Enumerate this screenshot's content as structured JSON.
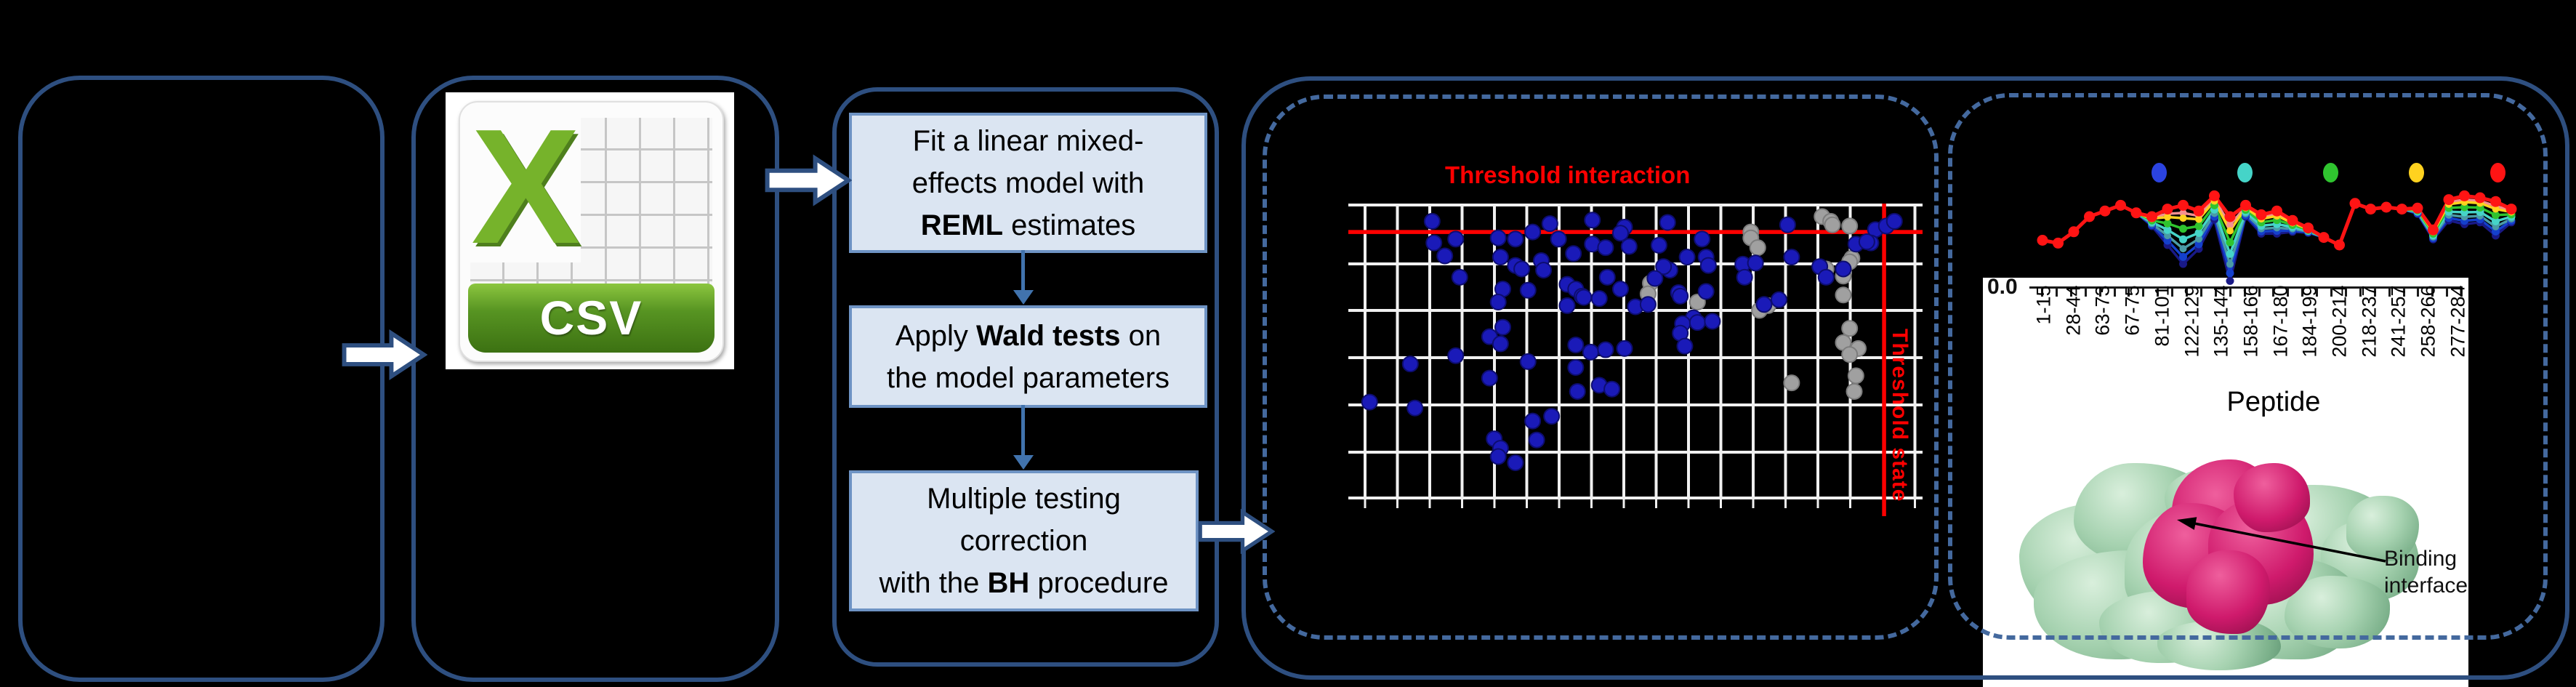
{
  "figure": {
    "background": "#000000"
  },
  "colors": {
    "panel_border": "#2e4f80",
    "dashed_border": "#44699e",
    "box_fill": "#dbe5f2",
    "box_border": "#6e93c4",
    "connector": "#4173ad",
    "threshold_red": "#ff0000",
    "grid_line": "#f0f0f0",
    "csv_green": "#76b32b",
    "protein_green": "#a6d2b0",
    "protein_magenta": "#cf1a6c"
  },
  "csv_icon": {
    "x_letter": "X",
    "label": "CSV"
  },
  "pipeline": {
    "boxes": [
      {
        "lines": [
          [
            {
              "text": "Fit a linear mixed-",
              "bold": false
            }
          ],
          [
            {
              "text": "effects model with",
              "bold": false
            }
          ],
          [
            {
              "text": "REML",
              "bold": true
            },
            {
              "text": " estimates",
              "bold": false
            }
          ]
        ]
      },
      {
        "lines": [
          [
            {
              "text": "Apply ",
              "bold": false
            },
            {
              "text": "Wald tests",
              "bold": true
            },
            {
              "text": " on",
              "bold": false
            }
          ],
          [
            {
              "text": "the model parameters",
              "bold": false
            }
          ]
        ]
      },
      {
        "lines": [
          [
            {
              "text": "Multiple testing",
              "bold": false
            }
          ],
          [
            {
              "text": "correction",
              "bold": false
            }
          ],
          [
            {
              "text": "with the ",
              "bold": false
            },
            {
              "text": "BH",
              "bold": true
            },
            {
              "text": " procedure",
              "bold": false
            }
          ]
        ]
      }
    ]
  },
  "scatter_labels": {
    "title": "Threshold interaction",
    "right_axis_label": "Threshold state"
  },
  "peptide_panel": {
    "y_tick": "0.0",
    "x_title": "Peptide",
    "x_labels": [
      "1-15",
      "28-44",
      "63-73",
      "67-75",
      "81-101",
      "122-129",
      "135-144",
      "158-166",
      "167-180",
      "184-199",
      "200-214",
      "218-237",
      "241-257",
      "258-266",
      "277-284"
    ],
    "binding_label": "Binding interface"
  },
  "chart_data": [
    {
      "type": "scatter",
      "title": "Threshold interaction",
      "right_axis_label": "Threshold state",
      "x_range": [
        0,
        100
      ],
      "y_range": [
        0,
        100
      ],
      "grid": true,
      "threshold_interaction_y_pct": 9.6,
      "threshold_state_x_pct": 93.3,
      "series": [
        {
          "name": "gray-points",
          "color": "#a0a0a0",
          "edge": "#7d7d7d",
          "points": [
            [
              82.5,
              4.4
            ],
            [
              84,
              6
            ],
            [
              84.3,
              7.2
            ],
            [
              87.3,
              7.6
            ],
            [
              70.1,
              9.6
            ],
            [
              70.1,
              11.6
            ],
            [
              71.3,
              14.9
            ],
            [
              87.7,
              18.5
            ],
            [
              87.3,
              19.7
            ],
            [
              86.2,
              24.5
            ],
            [
              83.2,
              22.1
            ],
            [
              52.6,
              26.9
            ],
            [
              52.2,
              30.5
            ],
            [
              60.8,
              33.3
            ],
            [
              71.6,
              36.1
            ],
            [
              73.1,
              34.5
            ],
            [
              86.2,
              30.9
            ],
            [
              87.3,
              42.2
            ],
            [
              86.2,
              47
            ],
            [
              88.8,
              49
            ],
            [
              87.3,
              51
            ],
            [
              88.4,
              58.2
            ],
            [
              88.1,
              63.5
            ],
            [
              77.2,
              60.6
            ]
          ]
        },
        {
          "name": "blue-points",
          "color": "#1a1ab8",
          "edge": "#0d0d70",
          "points": [
            [
              14.6,
              6
            ],
            [
              18.7,
              12
            ],
            [
              14.9,
              13.3
            ],
            [
              16.8,
              17.7
            ],
            [
              35.1,
              6.8
            ],
            [
              32.1,
              9.6
            ],
            [
              36.6,
              12
            ],
            [
              26.1,
              11.6
            ],
            [
              29.1,
              12
            ],
            [
              42.5,
              5.6
            ],
            [
              48.1,
              8
            ],
            [
              47.4,
              10
            ],
            [
              48.9,
              14.5
            ],
            [
              55.6,
              6.4
            ],
            [
              39.2,
              16.9
            ],
            [
              42.5,
              13.7
            ],
            [
              44.8,
              14.9
            ],
            [
              54.1,
              14.1
            ],
            [
              56,
              22.5
            ],
            [
              54.9,
              21.3
            ],
            [
              59,
              18.1
            ],
            [
              61.6,
              12
            ],
            [
              62.3,
              18.1
            ],
            [
              62.7,
              20.9
            ],
            [
              26.5,
              18.1
            ],
            [
              29.1,
              20.9
            ],
            [
              30.2,
              22.1
            ],
            [
              33.6,
              19.3
            ],
            [
              34,
              22.5
            ],
            [
              19.4,
              24.9
            ],
            [
              26.9,
              28.9
            ],
            [
              31.3,
              29.3
            ],
            [
              26.1,
              33.3
            ],
            [
              38.1,
              27.3
            ],
            [
              39.6,
              28.9
            ],
            [
              40.7,
              31.3
            ],
            [
              38.1,
              34.5
            ],
            [
              41,
              31.7
            ],
            [
              43.7,
              32.1
            ],
            [
              45.1,
              24.9
            ],
            [
              47.4,
              28.9
            ],
            [
              50,
              34.9
            ],
            [
              52.2,
              34.1
            ],
            [
              53.4,
              25.3
            ],
            [
              57.5,
              30.1
            ],
            [
              57.8,
              31.3
            ],
            [
              62.3,
              29.7
            ],
            [
              60.1,
              38.6
            ],
            [
              58.2,
              40.6
            ],
            [
              60.8,
              40.2
            ],
            [
              57.8,
              43.8
            ],
            [
              58.6,
              48.2
            ],
            [
              63.4,
              39.8
            ],
            [
              68.7,
              20.5
            ],
            [
              70.9,
              20.1
            ],
            [
              69,
              24.9
            ],
            [
              72.4,
              34.1
            ],
            [
              75,
              32.5
            ],
            [
              76.5,
              7.2
            ],
            [
              77.2,
              18.1
            ],
            [
              82.1,
              21.3
            ],
            [
              83.2,
              24.9
            ],
            [
              86.2,
              22.1
            ],
            [
              26.9,
              41.8
            ],
            [
              24.6,
              45
            ],
            [
              26.5,
              47.4
            ],
            [
              18.7,
              51.4
            ],
            [
              10.8,
              54.2
            ],
            [
              24.6,
              59
            ],
            [
              31.3,
              53.4
            ],
            [
              39.6,
              47.8
            ],
            [
              42.2,
              50.2
            ],
            [
              44.8,
              49.4
            ],
            [
              48.1,
              49
            ],
            [
              39.6,
              55.4
            ],
            [
              43.7,
              61.4
            ],
            [
              45.9,
              62.7
            ],
            [
              39.9,
              63.5
            ],
            [
              3.7,
              67.1
            ],
            [
              11.6,
              69.1
            ],
            [
              32.1,
              73.5
            ],
            [
              35.4,
              71.9
            ],
            [
              32.8,
              79.9
            ],
            [
              25.4,
              79.5
            ],
            [
              26.5,
              82.7
            ],
            [
              26.1,
              85.5
            ],
            [
              29.1,
              87.6
            ],
            [
              91.8,
              8.8
            ],
            [
              93.7,
              7.6
            ],
            [
              95.1,
              6
            ],
            [
              91,
              13.3
            ],
            [
              88.4,
              13.7
            ],
            [
              90.3,
              12.9
            ]
          ]
        }
      ]
    },
    {
      "type": "line",
      "xlabel": "Peptide",
      "y_tick_labels": [
        "0.0"
      ],
      "categories": [
        "1-15",
        "28-44",
        "63-73",
        "67-75",
        "81-101",
        "122-129",
        "135-144",
        "158-166",
        "167-180",
        "184-199",
        "200-214",
        "218-237",
        "241-257",
        "258-266",
        "277-284"
      ],
      "legend_dot_colors": [
        "#2b43e0",
        "#45d4c8",
        "#2fc42f",
        "#ffd21f",
        "#ff1414"
      ],
      "series": [
        {
          "name": "navy",
          "color": "#191987",
          "width": 3.5,
          "marker": 5.5,
          "values": [
            55,
            58,
            46,
            30,
            24,
            18,
            26,
            40,
            60,
            80,
            64,
            33,
            98,
            30,
            48,
            48,
            46,
            47,
            52,
            60,
            16,
            22,
            20,
            22,
            27,
            54,
            34,
            38,
            36,
            50,
            36
          ]
        },
        {
          "name": "blue",
          "color": "#1440cc",
          "width": 3.5,
          "marker": 5.5,
          "values": [
            55,
            58,
            46,
            30,
            24,
            18,
            26,
            38.8,
            55.4,
            72.6,
            59.2,
            30,
            89.8,
            28.6,
            45.6,
            45.1,
            44.6,
            46.4,
            52,
            60,
            16,
            22,
            20,
            22,
            26.3,
            52.8,
            31.4,
            34.4,
            32.9,
            45.7,
            34.3
          ]
        },
        {
          "name": "cadet-blue",
          "color": "#4a9ba6",
          "width": 3.5,
          "marker": 5,
          "values": [
            55,
            58,
            46,
            30,
            24,
            18,
            26,
            37.4,
            50.1,
            63.9,
            53.6,
            26.5,
            80.3,
            26.9,
            42.8,
            41.8,
            42.9,
            45.7,
            52,
            60,
            16,
            22,
            20,
            22,
            25.4,
            51.4,
            28.3,
            30.2,
            29.2,
            40.6,
            32.4
          ]
        },
        {
          "name": "turquoise",
          "color": "#45d4c8",
          "width": 3.5,
          "marker": 5.5,
          "values": [
            55,
            58,
            46,
            30,
            24,
            18,
            26,
            35.8,
            44,
            54,
            47.2,
            22.5,
            69.4,
            25,
            39.6,
            37.9,
            41,
            44.9,
            52,
            60,
            16,
            22,
            20,
            22,
            24.5,
            49.8,
            24.8,
            25.4,
            25.1,
            34.9,
            30.1
          ]
        },
        {
          "name": "green",
          "color": "#2fc42f",
          "width": 3.5,
          "marker": 5.5,
          "values": [
            55,
            58,
            46,
            30,
            24,
            18,
            26,
            34,
            37.2,
            42.8,
            40,
            18,
            57.2,
            22.8,
            36,
            33.6,
            38.8,
            44,
            52,
            60,
            16,
            22,
            20,
            22,
            23.4,
            48,
            20.8,
            20,
            20.4,
            28.4,
            27.6
          ]
        },
        {
          "name": "salmon",
          "color": "#f49090",
          "width": 3.5,
          "marker": 5,
          "values": [
            55,
            58,
            46,
            30,
            24,
            18,
            26,
            31.3,
            26.9,
            26.1,
            29.2,
            11.3,
            38.8,
            19.6,
            30.6,
            27.1,
            35.6,
            42.7,
            52,
            60,
            16,
            22,
            20,
            22,
            21.8,
            45.3,
            14.9,
            11.9,
            13.4,
            18.7,
            23.8
          ]
        },
        {
          "name": "yellow",
          "color": "#ffd21f",
          "width": 3.5,
          "marker": 5,
          "values": [
            55,
            58,
            46,
            30,
            24,
            18,
            26,
            32.2,
            30.4,
            31.6,
            32.8,
            13.5,
            45,
            20.6,
            32.4,
            29.3,
            36.6,
            43.1,
            52,
            60,
            16,
            22,
            20,
            22,
            22.3,
            46.2,
            16.8,
            14.6,
            15.7,
            21.9,
            25.1
          ]
        },
        {
          "name": "red",
          "color": "#ff1414",
          "width": 5,
          "marker": 7.5,
          "values": [
            55,
            58,
            46,
            30,
            24,
            18,
            26,
            30,
            22,
            18,
            24,
            8,
            30,
            18,
            28,
            24,
            34,
            42,
            52,
            60,
            16,
            22,
            20,
            22,
            21,
            44,
            12,
            8,
            10,
            14,
            22
          ]
        }
      ]
    }
  ]
}
